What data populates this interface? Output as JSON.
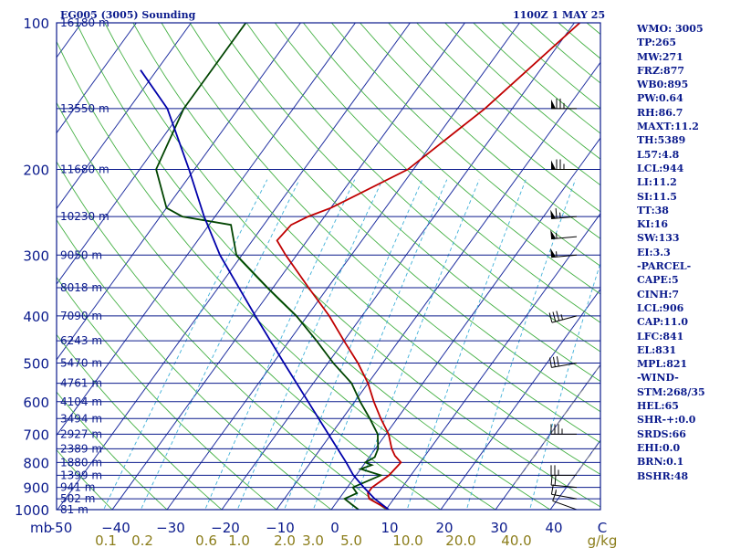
{
  "chart_data": {
    "type": "skew-t sounding",
    "title": "EG005 (3005) Sounding",
    "valid_time": "1100Z  1 MAY 25",
    "pressure_unit": "mb",
    "pressure_levels": [
      100,
      200,
      300,
      400,
      500,
      600,
      700,
      800,
      900,
      1000
    ],
    "temp_ticks": [
      -50,
      -40,
      -30,
      -20,
      -10,
      0,
      10,
      20,
      30,
      40
    ],
    "temp_tick_labels": [
      "-50",
      "−40",
      "−30",
      "−20",
      "−10",
      "0",
      "10",
      "20",
      "30",
      "40"
    ],
    "mixing_ratio_unit": "g/kg",
    "mixing_ratio_labels": [
      "0.1",
      "0.2",
      "0.6",
      "1.0",
      "2.0",
      "3.0",
      "5.0",
      "10.0",
      "20.0",
      "40.0"
    ],
    "height_labels": [
      {
        "p": 100,
        "label": "16180 m"
      },
      {
        "p": 150,
        "label": "13550 m"
      },
      {
        "p": 200,
        "label": "11680 m"
      },
      {
        "p": 250,
        "label": "10230 m"
      },
      {
        "p": 300,
        "label": "9050 m"
      },
      {
        "p": 350,
        "label": "8018 m"
      },
      {
        "p": 400,
        "label": "7090 m"
      },
      {
        "p": 450,
        "label": "6243 m"
      },
      {
        "p": 500,
        "label": "5470 m"
      },
      {
        "p": 550,
        "label": "4761 m"
      },
      {
        "p": 600,
        "label": "4104 m"
      },
      {
        "p": 650,
        "label": "3494 m"
      },
      {
        "p": 700,
        "label": "2927 m"
      },
      {
        "p": 750,
        "label": "2389 m"
      },
      {
        "p": 800,
        "label": "1880 m"
      },
      {
        "p": 850,
        "label": "1399 m"
      },
      {
        "p": 900,
        "label": "941 m"
      },
      {
        "p": 950,
        "label": "502 m"
      },
      {
        "p": 1000,
        "label": "81 m"
      }
    ],
    "series": [
      {
        "name": "temperature",
        "color": "#c00000",
        "points": [
          [
            1000,
            10.5
          ],
          [
            975,
            8.0
          ],
          [
            950,
            5.5
          ],
          [
            925,
            4.5
          ],
          [
            900,
            4.5
          ],
          [
            850,
            6.0
          ],
          [
            800,
            6.5
          ],
          [
            775,
            4.5
          ],
          [
            750,
            3.0
          ],
          [
            700,
            0.5
          ],
          [
            650,
            -3.0
          ],
          [
            600,
            -6.5
          ],
          [
            550,
            -10.0
          ],
          [
            500,
            -14.5
          ],
          [
            450,
            -20.0
          ],
          [
            400,
            -26.0
          ],
          [
            350,
            -33.5
          ],
          [
            300,
            -42.0
          ],
          [
            280,
            -45.5
          ],
          [
            260,
            -45.0
          ],
          [
            250,
            -43.0
          ],
          [
            240,
            -40.0
          ],
          [
            200,
            -31.0
          ],
          [
            150,
            -25.0
          ],
          [
            100,
            -19.0
          ]
        ]
      },
      {
        "name": "dewpoint",
        "color": "#004400",
        "points": [
          [
            1000,
            5.0
          ],
          [
            975,
            3.0
          ],
          [
            950,
            1.0
          ],
          [
            925,
            2.5
          ],
          [
            900,
            1.0
          ],
          [
            850,
            4.5
          ],
          [
            825,
            0.0
          ],
          [
            810,
            1.5
          ],
          [
            800,
            0.0
          ],
          [
            780,
            1.0
          ],
          [
            750,
            0.5
          ],
          [
            700,
            -1.5
          ],
          [
            650,
            -5.0
          ],
          [
            600,
            -9.0
          ],
          [
            550,
            -13.0
          ],
          [
            500,
            -19.0
          ],
          [
            450,
            -25.0
          ],
          [
            400,
            -32.0
          ],
          [
            350,
            -41.0
          ],
          [
            300,
            -51.0
          ],
          [
            260,
            -56.0
          ],
          [
            250,
            -66.0
          ],
          [
            240,
            -70.0
          ],
          [
            200,
            -77.0
          ],
          [
            150,
            -80.0
          ],
          [
            100,
            -80.0
          ]
        ]
      },
      {
        "name": "parcel",
        "color": "#0000aa",
        "points": [
          [
            1000,
            10.5
          ],
          [
            950,
            6.5
          ],
          [
            900,
            3.0
          ],
          [
            850,
            -0.5
          ],
          [
            800,
            -3.5
          ],
          [
            700,
            -10.5
          ],
          [
            600,
            -18.5
          ],
          [
            500,
            -28.0
          ],
          [
            400,
            -39.5
          ],
          [
            300,
            -54.0
          ],
          [
            250,
            -62.0
          ],
          [
            200,
            -71.0
          ],
          [
            150,
            -83.0
          ],
          [
            125,
            -93.0
          ]
        ]
      }
    ],
    "wind_barbs": [
      {
        "p": 150,
        "dir": 270,
        "kt": 75
      },
      {
        "p": 200,
        "dir": 270,
        "kt": 75
      },
      {
        "p": 250,
        "dir": 265,
        "kt": 65
      },
      {
        "p": 275,
        "dir": 265,
        "kt": 55
      },
      {
        "p": 300,
        "dir": 265,
        "kt": 55
      },
      {
        "p": 400,
        "dir": 255,
        "kt": 35
      },
      {
        "p": 500,
        "dir": 260,
        "kt": 30
      },
      {
        "p": 700,
        "dir": 270,
        "kt": 35
      },
      {
        "p": 850,
        "dir": 270,
        "kt": 25
      },
      {
        "p": 900,
        "dir": 275,
        "kt": 20
      },
      {
        "p": 950,
        "dir": 280,
        "kt": 15
      },
      {
        "p": 1000,
        "dir": 290,
        "kt": 10
      }
    ],
    "dashed_mixing_ratio_marks": true
  },
  "indices": [
    "WMO: 3005",
    "TP:265",
    "MW:271",
    "FRZ:877",
    "WB0:895",
    "PW:0.64",
    "RH:86.7",
    "MAXT:11.2",
    "TH:5389",
    "L57:4.8",
    "LCL:944",
    "LI:11.2",
    "SI:11.5",
    "TT:38",
    "KI:16",
    "SW:133",
    "EI:3.3",
    "-PARCEL-",
    "CAPE:5",
    "CINH:7",
    "LCL:906",
    "CAP:11.0",
    "LFC:841",
    "EL:831",
    "MPL:821",
    "-WIND-",
    "STM:268/35",
    "HEL:65",
    "SHR-+:0.0",
    "SRDS:66",
    "EHI:0.0",
    "BRN:0.1",
    "BSHR:48"
  ]
}
